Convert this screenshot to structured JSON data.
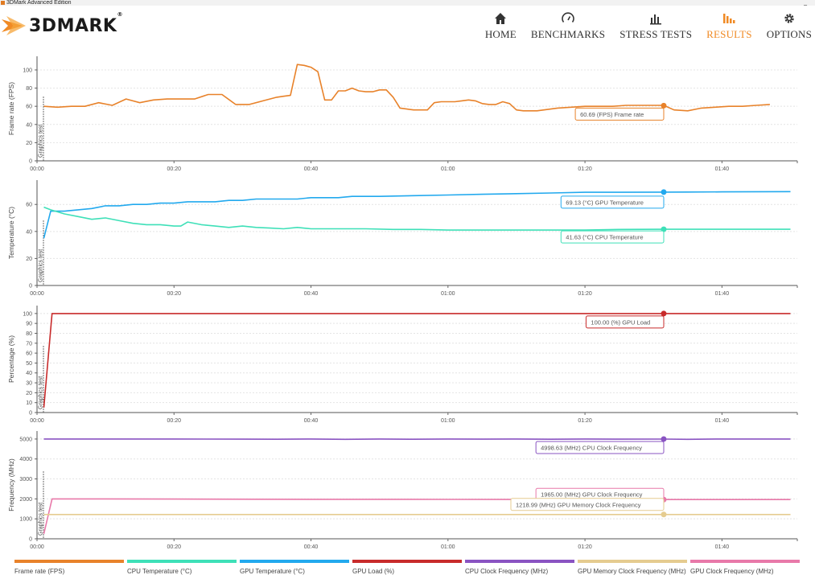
{
  "window": {
    "title": "3DMark Advanced Edition"
  },
  "logo": {
    "text": "3DMARK",
    "reg": "®"
  },
  "nav": [
    {
      "label": "HOME",
      "icon": "home-icon",
      "active": false
    },
    {
      "label": "BENCHMARKS",
      "icon": "gauge-icon",
      "active": false
    },
    {
      "label": "STRESS TESTS",
      "icon": "bars-chart-icon",
      "active": false
    },
    {
      "label": "RESULTS",
      "icon": "results-chart-icon",
      "active": true
    },
    {
      "label": "OPTIONS",
      "icon": "gear-icon",
      "active": false
    }
  ],
  "colors": {
    "accent": "#f08a24",
    "fps": "#e8822a",
    "cpu_temp": "#3ee0b8",
    "gpu_temp": "#22a9ee",
    "gpu_load": "#c82b2b",
    "cpu_clock": "#8a54c2",
    "gpu_mem_clock": "#e5cc90",
    "gpu_clock": "#e879a9"
  },
  "chart_data": [
    {
      "type": "line",
      "ylabel": "Frame rate (FPS)",
      "annotation": "Graphics test",
      "ylim": [
        0,
        115
      ],
      "yticks": [
        0,
        20,
        40,
        60,
        80,
        100
      ],
      "xlim": [
        0,
        111
      ],
      "xticks": [
        0,
        20,
        40,
        60,
        80,
        100
      ],
      "xtick_labels": [
        "00:00",
        "00:20",
        "00:40",
        "01:00",
        "01:20",
        "01:40"
      ],
      "cursor_x": 91.5,
      "series": [
        {
          "name": "Frame rate",
          "color_key": "fps",
          "tooltip": "60.69 (FPS) Frame rate",
          "cursor_value": 60.69,
          "x": [
            1,
            3,
            5,
            7,
            9,
            11,
            13,
            15,
            17,
            19,
            21,
            23,
            25,
            27,
            29,
            31,
            33,
            35,
            36,
            37,
            38,
            39,
            40,
            41,
            42,
            43,
            44,
            45,
            46,
            47,
            48,
            49,
            50,
            51,
            52,
            53,
            54,
            55,
            56,
            57,
            58,
            59,
            60,
            61,
            62,
            63,
            64,
            65,
            66,
            67,
            68,
            69,
            70,
            71,
            72,
            73,
            74,
            75,
            76,
            78,
            80,
            82,
            84,
            86,
            88,
            90,
            91.5,
            93,
            95,
            97,
            99,
            101,
            103,
            105,
            107
          ],
          "y": [
            60,
            59,
            60,
            60,
            64,
            61,
            68,
            64,
            67,
            68,
            68,
            68,
            73,
            73,
            62,
            62,
            66,
            70,
            71,
            72,
            106,
            105,
            103,
            98,
            67,
            67,
            77,
            77,
            80,
            77,
            76,
            76,
            78,
            78,
            70,
            58,
            57,
            56,
            56,
            56,
            64,
            65,
            65,
            65,
            66,
            67,
            66,
            63,
            62,
            62,
            65,
            63,
            56,
            55,
            55,
            55,
            56,
            57,
            58,
            59,
            60,
            60,
            60,
            61,
            61,
            61,
            61,
            56,
            55,
            58,
            59,
            60,
            60,
            61,
            62
          ]
        }
      ]
    },
    {
      "type": "line",
      "ylabel": "Temperature (°C)",
      "annotation": "Graphics test",
      "ylim": [
        0,
        78
      ],
      "yticks": [
        0,
        20,
        40,
        60
      ],
      "xlim": [
        0,
        111
      ],
      "xticks": [
        0,
        20,
        40,
        60,
        80,
        100
      ],
      "xtick_labels": [
        "00:00",
        "00:20",
        "00:40",
        "01:00",
        "01:20",
        "01:40"
      ],
      "cursor_x": 91.5,
      "series": [
        {
          "name": "GPU Temperature",
          "color_key": "gpu_temp",
          "tooltip": "69.13 (°C) GPU Temperature",
          "cursor_value": 69.13,
          "x": [
            1,
            2,
            4,
            6,
            8,
            10,
            12,
            14,
            16,
            18,
            20,
            22,
            24,
            26,
            28,
            30,
            32,
            34,
            36,
            38,
            40,
            42,
            44,
            46,
            48,
            50,
            55,
            60,
            65,
            70,
            75,
            80,
            85,
            91.5,
            95,
            100,
            105,
            110
          ],
          "y": [
            35,
            55,
            55,
            56,
            57,
            59,
            59,
            60,
            60,
            61,
            61,
            62,
            62,
            62,
            63,
            63,
            64,
            64,
            64,
            64,
            65,
            65,
            65,
            66,
            66,
            66,
            66.5,
            67,
            67.5,
            68,
            68.5,
            69,
            69,
            69.13,
            69.2,
            69.3,
            69.4,
            69.5
          ]
        },
        {
          "name": "CPU Temperature",
          "color_key": "cpu_temp",
          "tooltip": "41.63 (°C) CPU Temperature",
          "cursor_value": 41.63,
          "x": [
            1,
            2,
            4,
            6,
            8,
            10,
            12,
            14,
            16,
            18,
            20,
            21,
            22,
            24,
            26,
            28,
            30,
            32,
            34,
            36,
            38,
            40,
            44,
            48,
            52,
            56,
            60,
            64,
            68,
            72,
            76,
            80,
            85,
            91.5,
            95,
            100,
            105,
            110
          ],
          "y": [
            58,
            56,
            53,
            51,
            49,
            50,
            48,
            46,
            45,
            45,
            44,
            44,
            47,
            45,
            44,
            43,
            44,
            43,
            42.5,
            42,
            43,
            42,
            42,
            42,
            41.5,
            41.5,
            41,
            41,
            41,
            41,
            41,
            41,
            41.5,
            41.63,
            41.6,
            41.6,
            41.6,
            41.6
          ]
        }
      ]
    },
    {
      "type": "line",
      "ylabel": "Percentage (%)",
      "annotation": "Graphics test",
      "ylim": [
        0,
        108
      ],
      "yticks": [
        0,
        10,
        20,
        30,
        40,
        50,
        60,
        70,
        80,
        90,
        100
      ],
      "xlim": [
        0,
        111
      ],
      "xticks": [
        0,
        20,
        40,
        60,
        80,
        100
      ],
      "xtick_labels": [
        "00:00",
        "00:20",
        "00:40",
        "01:00",
        "01:20",
        "01:40"
      ],
      "cursor_x": 91.5,
      "series": [
        {
          "name": "GPU Load",
          "color_key": "gpu_load",
          "tooltip": "100.00 (%) GPU Load",
          "cursor_value": 100.0,
          "x": [
            1,
            2.2,
            3,
            110
          ],
          "y": [
            5,
            100,
            100,
            100
          ]
        }
      ]
    },
    {
      "type": "line",
      "ylabel": "Frequency (MHz)",
      "annotation": "Graphics test",
      "ylim": [
        0,
        5400
      ],
      "yticks": [
        0,
        1000,
        2000,
        3000,
        4000,
        5000
      ],
      "xlim": [
        0,
        111
      ],
      "xticks": [
        0,
        20,
        40,
        60,
        80,
        100
      ],
      "xtick_labels": [
        "00:00",
        "00:20",
        "00:40",
        "01:00",
        "01:20",
        "01:40"
      ],
      "cursor_x": 91.5,
      "series": [
        {
          "name": "CPU Clock Frequency",
          "color_key": "cpu_clock",
          "tooltip": "4998.63 (MHz) CPU Clock Frequency",
          "cursor_value": 4998.63,
          "x": [
            1,
            10,
            20,
            30,
            35,
            40,
            45,
            50,
            55,
            60,
            65,
            70,
            75,
            80,
            85,
            91.5,
            95,
            100,
            110
          ],
          "y": [
            5000,
            5000,
            5000,
            4995,
            4990,
            5000,
            4985,
            5000,
            4990,
            5000,
            4995,
            5000,
            4990,
            5000,
            4995,
            4998.63,
            4985,
            5000,
            5000
          ]
        },
        {
          "name": "GPU Clock Frequency",
          "color_key": "gpu_clock",
          "tooltip": "1965.00 (MHz) GPU Clock Frequency",
          "cursor_value": 1965.0,
          "x": [
            1,
            2.2,
            10,
            20,
            40,
            60,
            80,
            91.5,
            100,
            110
          ],
          "y": [
            250,
            2000,
            2000,
            1990,
            1980,
            1975,
            1970,
            1965,
            1965,
            1965
          ]
        },
        {
          "name": "GPU Memory Clock Frequency",
          "color_key": "gpu_mem_clock",
          "tooltip": "1218.99 (MHz) GPU Memory Clock Frequency",
          "cursor_value": 1218.99,
          "x": [
            1,
            2.2,
            110
          ],
          "y": [
            1219,
            1219,
            1219
          ]
        }
      ]
    }
  ],
  "legend": [
    {
      "label": "Frame rate (FPS)",
      "color_key": "fps"
    },
    {
      "label": "CPU Temperature (°C)",
      "color_key": "cpu_temp"
    },
    {
      "label": "GPU Temperature (°C)",
      "color_key": "gpu_temp"
    },
    {
      "label": "GPU Load (%)",
      "color_key": "gpu_load"
    },
    {
      "label": "CPU Clock Frequency (MHz)",
      "color_key": "cpu_clock"
    },
    {
      "label": "GPU Memory Clock Frequency (MHz)",
      "color_key": "gpu_mem_clock"
    },
    {
      "label": "GPU Clock Frequency (MHz)",
      "color_key": "gpu_clock"
    }
  ]
}
